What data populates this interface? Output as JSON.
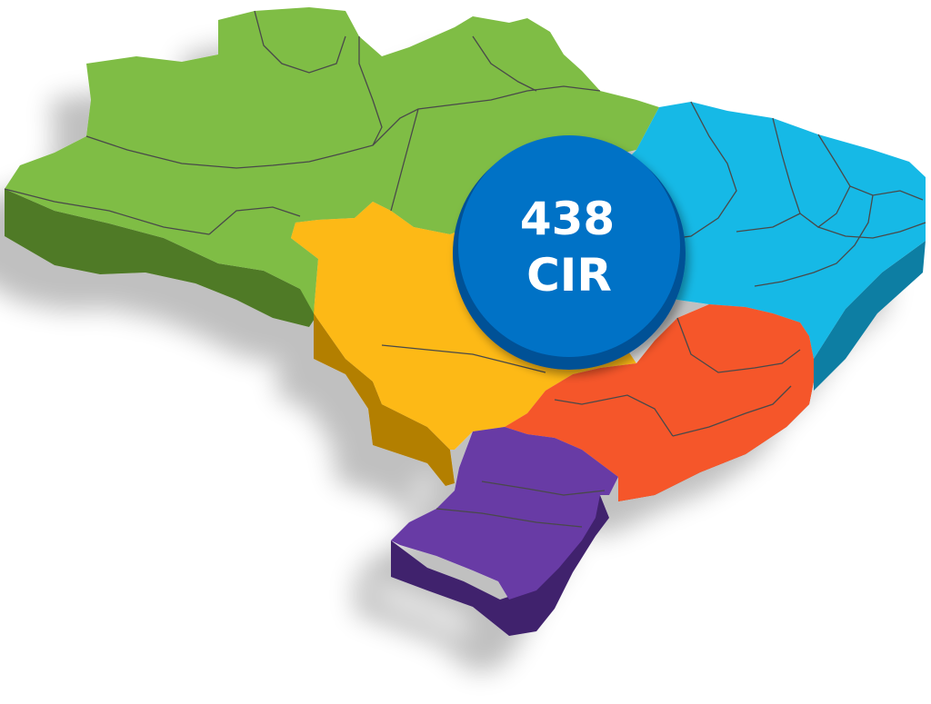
{
  "badge": {
    "count": "438",
    "label": "CIR"
  },
  "colors": {
    "north": "#7fbd45",
    "north_side": "#4f7a27",
    "northeast": "#16b9e6",
    "northeast_side": "#0a7ea3",
    "center_west": "#fdb913",
    "center_west_side": "#b37f05",
    "southeast": "#f5562a",
    "southeast_side": "#a8361a",
    "south": "#673aa5",
    "south_side": "#40206d",
    "badge_fill": "#0072c6",
    "badge_shadow": "#005196",
    "border_line": "#4a4a4a"
  }
}
